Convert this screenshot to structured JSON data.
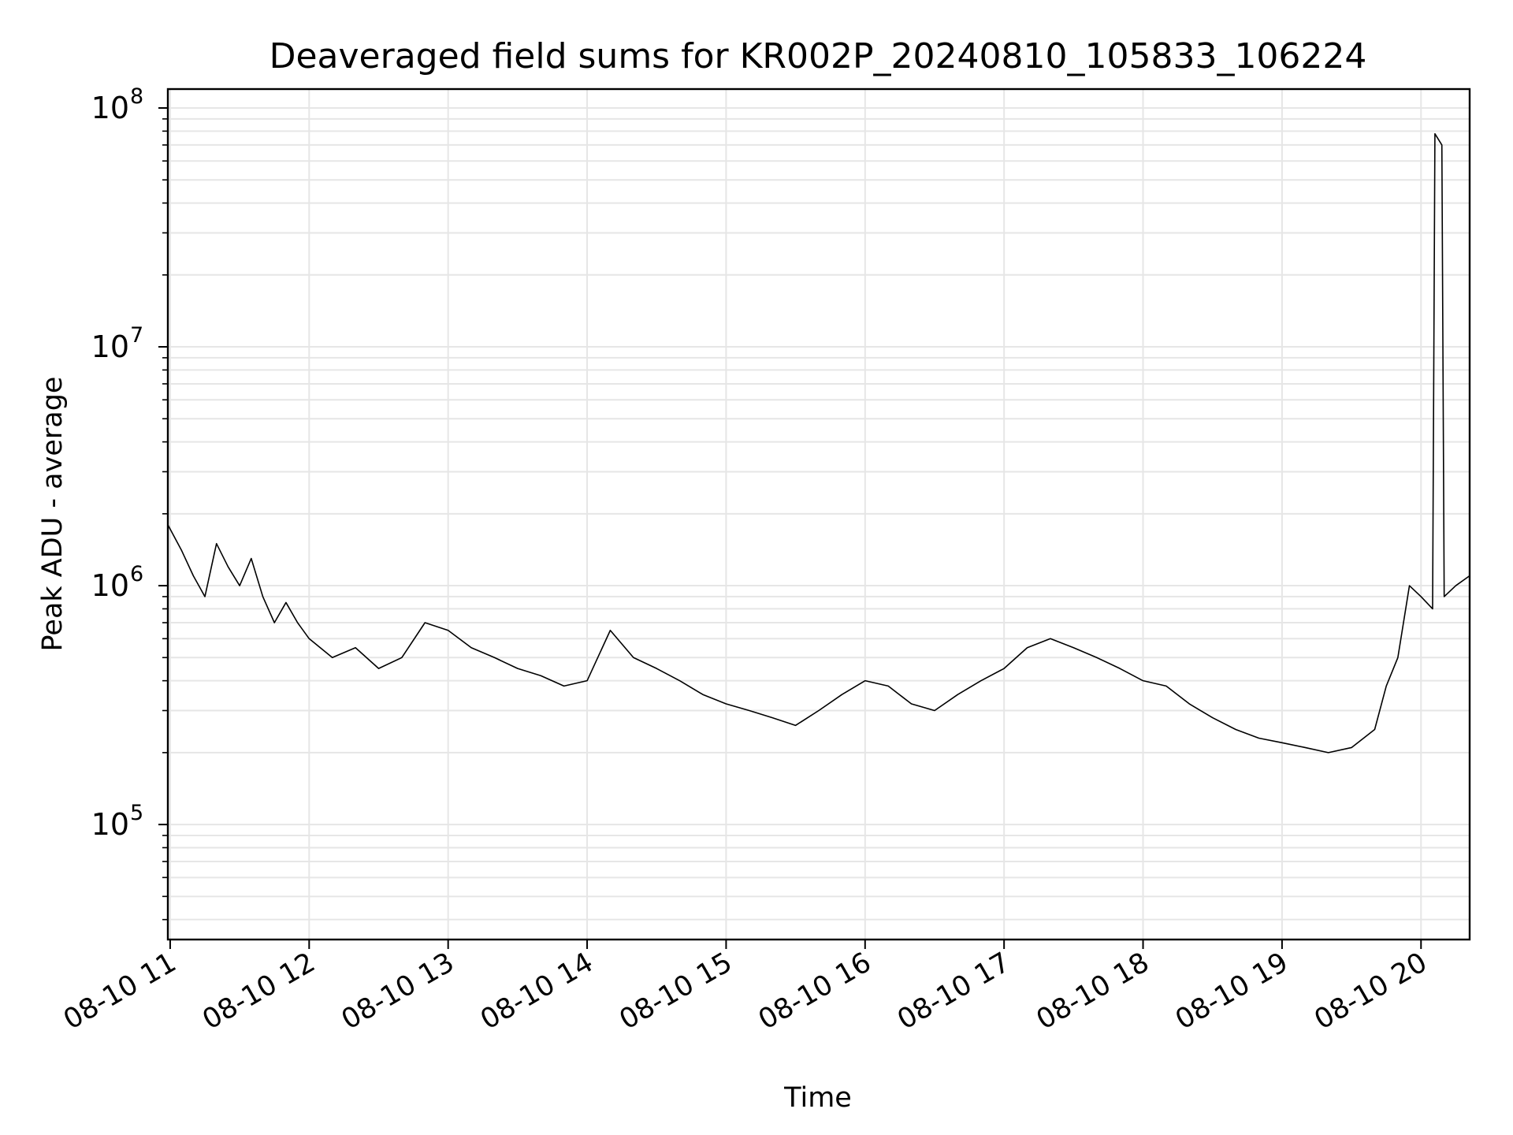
{
  "chart_data": {
    "type": "line",
    "title": "Deaveraged field sums for KR002P_20240810_105833_106224",
    "xlabel": "Time",
    "ylabel": "Peak ADU - average",
    "yscale": "log",
    "ylim": [
      33000,
      120000000
    ],
    "xlim": [
      "2024-08-10 10:59",
      "2024-08-10 20:21"
    ],
    "grid": true,
    "line_color": "#000000",
    "grid_color": "#e6e6e6",
    "x_ticks": [
      {
        "value": "2024-08-10 11:00",
        "label": "08-10 11"
      },
      {
        "value": "2024-08-10 12:00",
        "label": "08-10 12"
      },
      {
        "value": "2024-08-10 13:00",
        "label": "08-10 13"
      },
      {
        "value": "2024-08-10 14:00",
        "label": "08-10 14"
      },
      {
        "value": "2024-08-10 15:00",
        "label": "08-10 15"
      },
      {
        "value": "2024-08-10 16:00",
        "label": "08-10 16"
      },
      {
        "value": "2024-08-10 17:00",
        "label": "08-10 17"
      },
      {
        "value": "2024-08-10 18:00",
        "label": "08-10 18"
      },
      {
        "value": "2024-08-10 19:00",
        "label": "08-10 19"
      },
      {
        "value": "2024-08-10 20:00",
        "label": "08-10 20"
      }
    ],
    "y_ticks": [
      {
        "value": 100000,
        "base": "10",
        "exp": "5"
      },
      {
        "value": 1000000,
        "base": "10",
        "exp": "6"
      },
      {
        "value": 10000000,
        "base": "10",
        "exp": "7"
      },
      {
        "value": 100000000,
        "base": "10",
        "exp": "8"
      }
    ],
    "series": [
      {
        "values": [
          [
            "2024-08-10 10:59",
            1800000
          ],
          [
            "2024-08-10 11:05",
            1400000
          ],
          [
            "2024-08-10 11:10",
            1100000
          ],
          [
            "2024-08-10 11:15",
            900000
          ],
          [
            "2024-08-10 11:20",
            1500000
          ],
          [
            "2024-08-10 11:25",
            1200000
          ],
          [
            "2024-08-10 11:30",
            1000000
          ],
          [
            "2024-08-10 11:35",
            1300000
          ],
          [
            "2024-08-10 11:40",
            900000
          ],
          [
            "2024-08-10 11:45",
            700000
          ],
          [
            "2024-08-10 11:50",
            850000
          ],
          [
            "2024-08-10 11:55",
            700000
          ],
          [
            "2024-08-10 12:00",
            600000
          ],
          [
            "2024-08-10 12:10",
            500000
          ],
          [
            "2024-08-10 12:20",
            550000
          ],
          [
            "2024-08-10 12:30",
            450000
          ],
          [
            "2024-08-10 12:40",
            500000
          ],
          [
            "2024-08-10 12:50",
            700000
          ],
          [
            "2024-08-10 13:00",
            650000
          ],
          [
            "2024-08-10 13:10",
            550000
          ],
          [
            "2024-08-10 13:20",
            500000
          ],
          [
            "2024-08-10 13:30",
            450000
          ],
          [
            "2024-08-10 13:40",
            420000
          ],
          [
            "2024-08-10 13:50",
            380000
          ],
          [
            "2024-08-10 14:00",
            400000
          ],
          [
            "2024-08-10 14:10",
            650000
          ],
          [
            "2024-08-10 14:20",
            500000
          ],
          [
            "2024-08-10 14:30",
            450000
          ],
          [
            "2024-08-10 14:40",
            400000
          ],
          [
            "2024-08-10 14:50",
            350000
          ],
          [
            "2024-08-10 15:00",
            320000
          ],
          [
            "2024-08-10 15:10",
            300000
          ],
          [
            "2024-08-10 15:20",
            280000
          ],
          [
            "2024-08-10 15:30",
            260000
          ],
          [
            "2024-08-10 15:40",
            300000
          ],
          [
            "2024-08-10 15:50",
            350000
          ],
          [
            "2024-08-10 16:00",
            400000
          ],
          [
            "2024-08-10 16:10",
            380000
          ],
          [
            "2024-08-10 16:20",
            320000
          ],
          [
            "2024-08-10 16:30",
            300000
          ],
          [
            "2024-08-10 16:40",
            350000
          ],
          [
            "2024-08-10 16:50",
            400000
          ],
          [
            "2024-08-10 17:00",
            450000
          ],
          [
            "2024-08-10 17:10",
            550000
          ],
          [
            "2024-08-10 17:20",
            600000
          ],
          [
            "2024-08-10 17:30",
            550000
          ],
          [
            "2024-08-10 17:40",
            500000
          ],
          [
            "2024-08-10 17:50",
            450000
          ],
          [
            "2024-08-10 18:00",
            400000
          ],
          [
            "2024-08-10 18:10",
            380000
          ],
          [
            "2024-08-10 18:20",
            320000
          ],
          [
            "2024-08-10 18:30",
            280000
          ],
          [
            "2024-08-10 18:40",
            250000
          ],
          [
            "2024-08-10 18:50",
            230000
          ],
          [
            "2024-08-10 19:00",
            220000
          ],
          [
            "2024-08-10 19:10",
            210000
          ],
          [
            "2024-08-10 19:20",
            200000
          ],
          [
            "2024-08-10 19:30",
            210000
          ],
          [
            "2024-08-10 19:40",
            250000
          ],
          [
            "2024-08-10 19:45",
            380000
          ],
          [
            "2024-08-10 19:50",
            500000
          ],
          [
            "2024-08-10 19:55",
            1000000
          ],
          [
            "2024-08-10 20:00",
            900000
          ],
          [
            "2024-08-10 20:05",
            800000
          ],
          [
            "2024-08-10 20:06",
            78000000
          ],
          [
            "2024-08-10 20:09",
            70000000
          ],
          [
            "2024-08-10 20:10",
            900000
          ],
          [
            "2024-08-10 20:15",
            1000000
          ],
          [
            "2024-08-10 20:21",
            1100000
          ]
        ]
      }
    ]
  }
}
